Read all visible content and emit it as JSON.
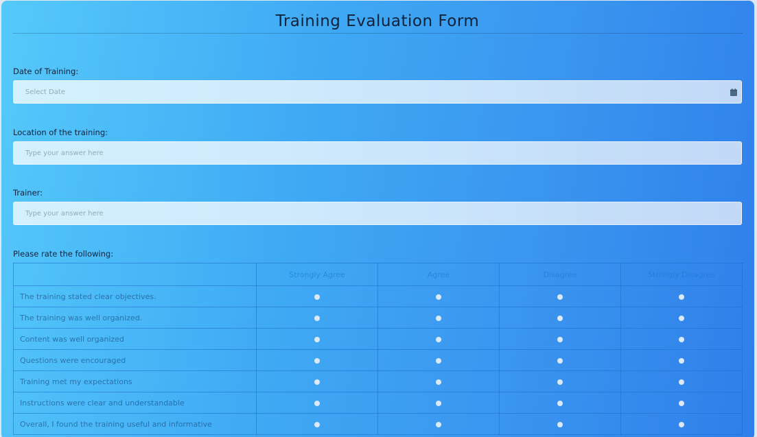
{
  "form": {
    "title": "Training Evaluation Form"
  },
  "fields": {
    "date": {
      "label": "Date of Training:",
      "placeholder": "Select Date",
      "icon": "calendar-icon"
    },
    "location": {
      "label": "Location of the training:",
      "placeholder": "Type your answer here"
    },
    "trainer": {
      "label": "Trainer:",
      "placeholder": "Type your answer here"
    }
  },
  "rating": {
    "label": "Please rate the following:",
    "columns": [
      "Strongly Agree",
      "Agree",
      "Disagree",
      "Strongly Disagree"
    ],
    "rows": [
      "The training stated clear objectives.",
      "The training was well organized.",
      "Content was well organized",
      "Questions were encouraged",
      "Training met my expectations",
      "Instructions were clear and understandable",
      "Overall, I found the training useful and informative"
    ]
  },
  "colors": {
    "gradient_start": "#55c9fb",
    "gradient_end": "#2f7fea",
    "input_bg": "#d4f1ff",
    "title_text": "#0f2138"
  }
}
